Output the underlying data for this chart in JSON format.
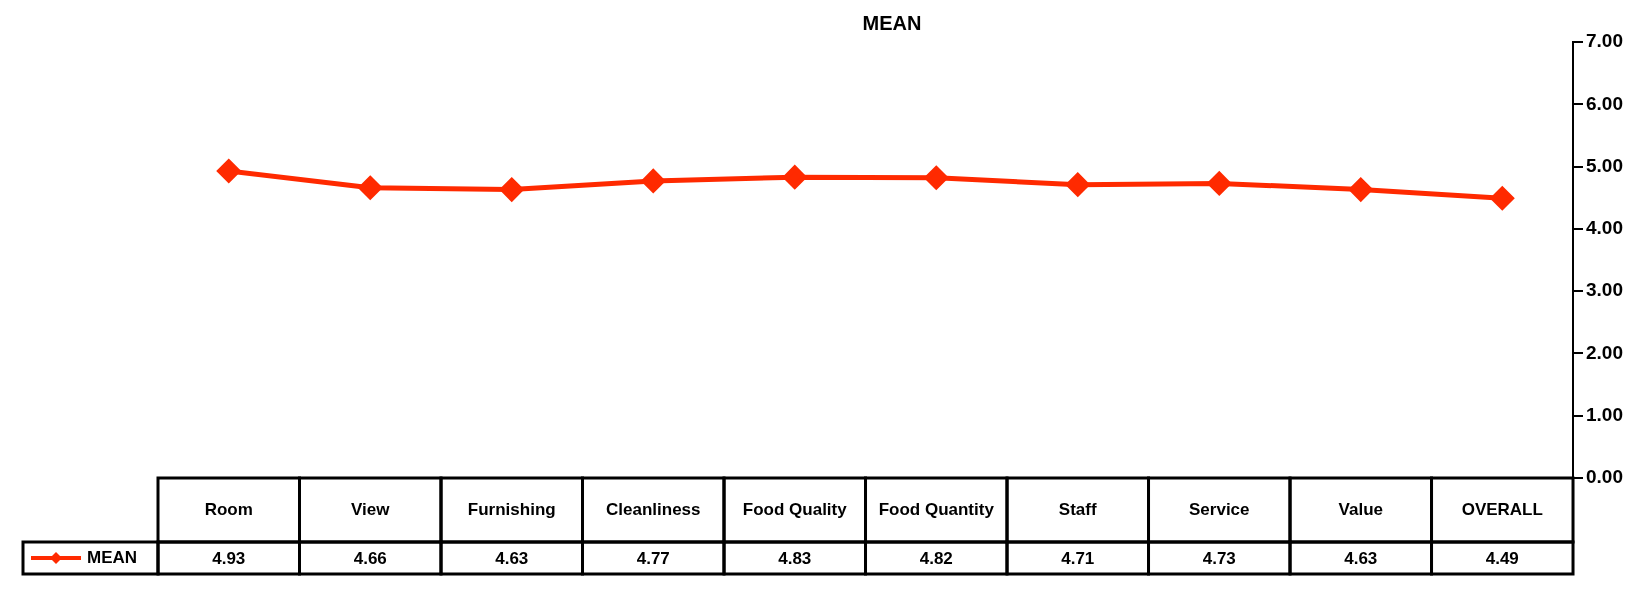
{
  "chart_data": {
    "type": "line",
    "title": "MEAN",
    "categories": [
      "Room",
      "View",
      "Furnishing",
      "Cleanliness",
      "Food Quality",
      "Food Quantity",
      "Staff",
      "Service",
      "Value",
      "OVERALL"
    ],
    "series": [
      {
        "name": "MEAN",
        "color": "#ff2a00",
        "values": [
          4.93,
          4.66,
          4.63,
          4.77,
          4.83,
          4.82,
          4.71,
          4.73,
          4.63,
          4.49
        ]
      }
    ],
    "ylim": [
      0,
      7
    ],
    "yticks": [
      {
        "value": 0,
        "label": "0.00"
      },
      {
        "value": 1,
        "label": "1.00"
      },
      {
        "value": 2,
        "label": "2.00"
      },
      {
        "value": 3,
        "label": "3.00"
      },
      {
        "value": 4,
        "label": "4.00"
      },
      {
        "value": 5,
        "label": "5.00"
      },
      {
        "value": 6,
        "label": "6.00"
      },
      {
        "value": 7,
        "label": "7.00"
      }
    ],
    "marker": "diamond",
    "line_style": "solid",
    "data_labels": true,
    "legend": "bottom left",
    "grid": false
  }
}
